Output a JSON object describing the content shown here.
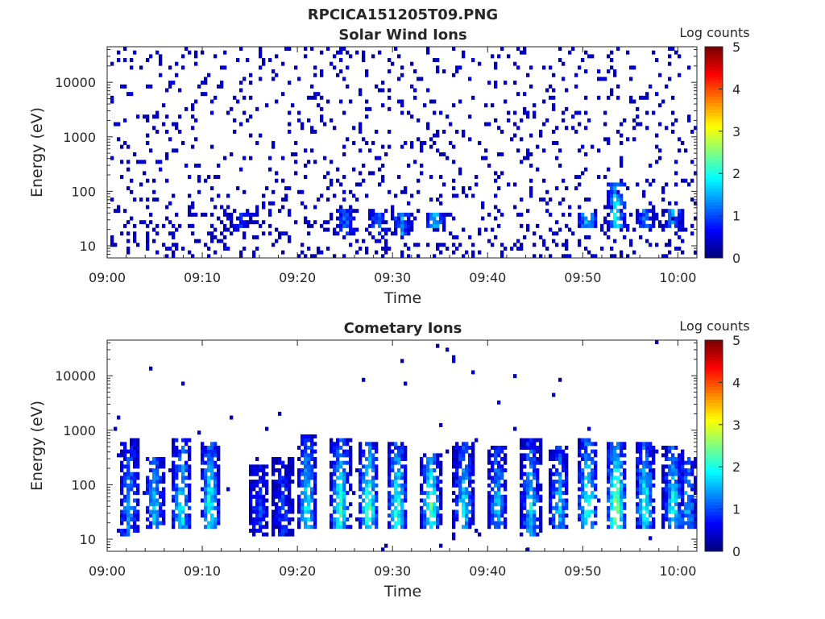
{
  "figure": {
    "main_title": "RPCICA151205T09.PNG"
  },
  "colormap": "jet",
  "chart_data": [
    {
      "type": "heatmap",
      "title": "Solar Wind Ions",
      "xlabel": "Time",
      "ylabel": "Energy (eV)",
      "y_scale": "log",
      "ylim": [
        6,
        45000
      ],
      "xlim_minutes": [
        0,
        62
      ],
      "x_tick_labels": [
        "09:00",
        "09:10",
        "09:20",
        "09:30",
        "09:40",
        "09:50",
        "10:00"
      ],
      "x_tick_minutes": [
        0,
        10,
        20,
        30,
        40,
        50,
        60
      ],
      "y_tick_labels": [
        "10",
        "100",
        "1000",
        "10000"
      ],
      "y_tick_values": [
        10,
        100,
        1000,
        10000
      ],
      "colorbar": {
        "label": "Log counts",
        "min": 0,
        "max": 5,
        "tick_labels": [
          "0",
          "1",
          "2",
          "3",
          "4",
          "5"
        ]
      },
      "background_noise_density": 0.09,
      "enhancements": [
        {
          "t": 14.0,
          "e_low": 20,
          "e_high": 40,
          "level": 1.0
        },
        {
          "t": 25.0,
          "e_low": 15,
          "e_high": 50,
          "level": 1.2
        },
        {
          "t": 28.5,
          "e_low": 15,
          "e_high": 40,
          "level": 1.3
        },
        {
          "t": 31.0,
          "e_low": 15,
          "e_high": 40,
          "level": 1.5
        },
        {
          "t": 34.5,
          "e_low": 20,
          "e_high": 40,
          "level": 1.7
        },
        {
          "t": 50.5,
          "e_low": 20,
          "e_high": 40,
          "level": 1.8
        },
        {
          "t": 53.5,
          "e_low": 20,
          "e_high": 150,
          "level": 2.0
        },
        {
          "t": 56.5,
          "e_low": 20,
          "e_high": 50,
          "level": 1.2
        },
        {
          "t": 59.5,
          "e_low": 20,
          "e_high": 50,
          "level": 1.4
        }
      ]
    },
    {
      "type": "heatmap",
      "title": "Cometary Ions",
      "xlabel": "Time",
      "ylabel": "Energy (eV)",
      "y_scale": "log",
      "ylim": [
        6,
        45000
      ],
      "xlim_minutes": [
        0,
        62
      ],
      "x_tick_labels": [
        "09:00",
        "09:10",
        "09:20",
        "09:30",
        "09:40",
        "09:50",
        "10:00"
      ],
      "x_tick_minutes": [
        0,
        10,
        20,
        30,
        40,
        50,
        60
      ],
      "y_tick_labels": [
        "10",
        "100",
        "1000",
        "10000"
      ],
      "y_tick_values": [
        10,
        100,
        1000,
        10000
      ],
      "colorbar": {
        "label": "Log counts",
        "min": 0,
        "max": 5,
        "tick_labels": [
          "0",
          "1",
          "2",
          "3",
          "4",
          "5"
        ]
      },
      "background_noise_density": 0.006,
      "enhancements": [
        {
          "t": 2.3,
          "e_low": 12,
          "e_high": 700,
          "level": 1.6
        },
        {
          "t": 5.0,
          "e_low": 15,
          "e_high": 300,
          "level": 1.7
        },
        {
          "t": 7.8,
          "e_low": 15,
          "e_high": 700,
          "level": 2.1
        },
        {
          "t": 10.8,
          "e_low": 15,
          "e_high": 600,
          "level": 2.2
        },
        {
          "t": 16.0,
          "e_low": 12,
          "e_high": 250,
          "level": 1.0
        },
        {
          "t": 18.5,
          "e_low": 12,
          "e_high": 300,
          "level": 1.0
        },
        {
          "t": 21.0,
          "e_low": 15,
          "e_high": 800,
          "level": 2.0
        },
        {
          "t": 24.5,
          "e_low": 15,
          "e_high": 700,
          "level": 2.3
        },
        {
          "t": 27.5,
          "e_low": 15,
          "e_high": 600,
          "level": 2.5
        },
        {
          "t": 30.5,
          "e_low": 15,
          "e_high": 600,
          "level": 2.3
        },
        {
          "t": 34.0,
          "e_low": 15,
          "e_high": 400,
          "level": 2.4
        },
        {
          "t": 37.5,
          "e_low": 15,
          "e_high": 600,
          "level": 1.9
        },
        {
          "t": 41.0,
          "e_low": 15,
          "e_high": 500,
          "level": 1.7
        },
        {
          "t": 44.5,
          "e_low": 12,
          "e_high": 700,
          "level": 1.9
        },
        {
          "t": 47.5,
          "e_low": 15,
          "e_high": 500,
          "level": 1.7
        },
        {
          "t": 50.5,
          "e_low": 15,
          "e_high": 700,
          "level": 2.4
        },
        {
          "t": 53.5,
          "e_low": 15,
          "e_high": 600,
          "level": 2.9
        },
        {
          "t": 56.5,
          "e_low": 15,
          "e_high": 600,
          "level": 2.2
        },
        {
          "t": 59.5,
          "e_low": 15,
          "e_high": 500,
          "level": 2.0
        },
        {
          "t": 61.0,
          "e_low": 15,
          "e_high": 300,
          "level": 1.6
        }
      ]
    }
  ]
}
